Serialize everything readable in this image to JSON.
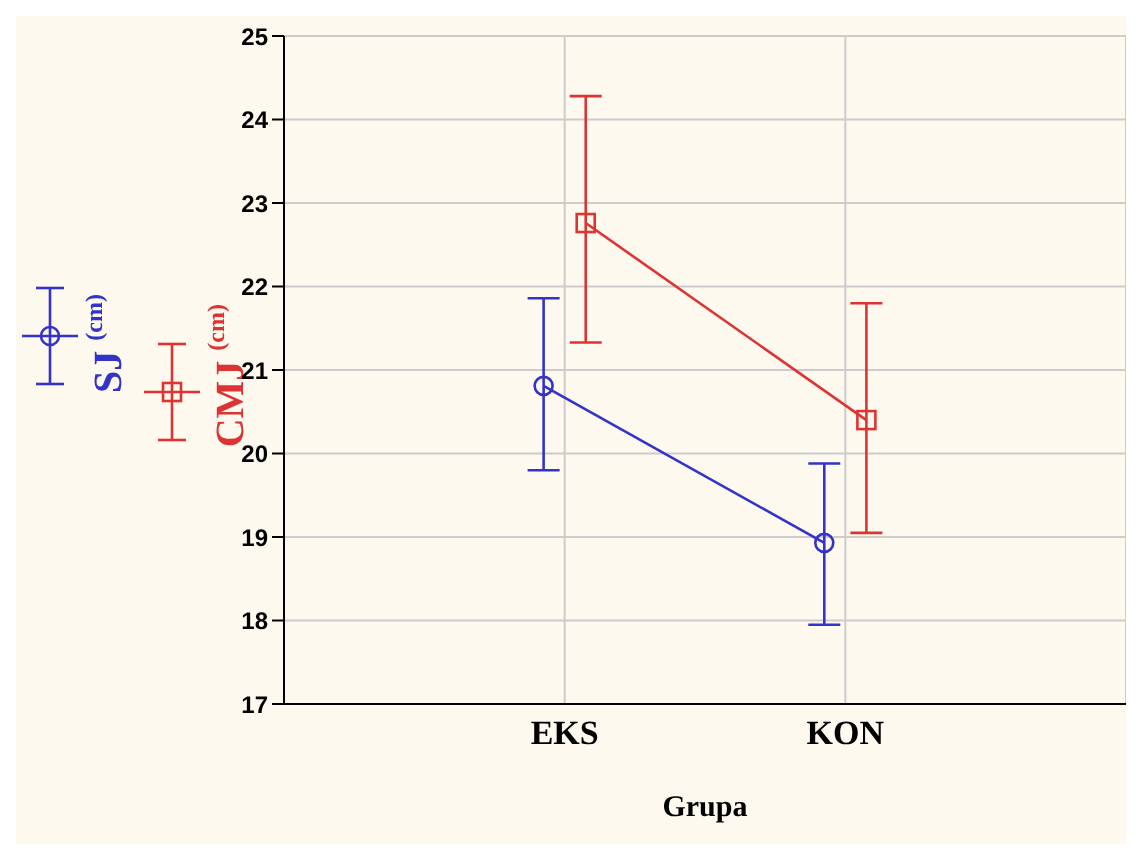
{
  "chart_data": {
    "type": "line",
    "xlabel": "Grupa",
    "categories": [
      "EKS",
      "KON"
    ],
    "series": [
      {
        "name": "SJ $^{(cm)}$",
        "color": "#3333cc",
        "marker": "circle",
        "values": [
          20.81,
          18.93
        ],
        "errors": [
          [
            19.8,
            21.86
          ],
          [
            17.95,
            19.88
          ]
        ]
      },
      {
        "name": "CMJ $^{(cm)}$",
        "color": "#dd3333",
        "marker": "square",
        "values": [
          22.76,
          20.4
        ],
        "errors": [
          [
            21.33,
            24.28
          ],
          [
            19.05,
            21.8
          ]
        ]
      }
    ],
    "ylim": [
      17,
      25
    ],
    "yticks": [
      17,
      18,
      19,
      20,
      21,
      22,
      23,
      24,
      25
    ],
    "grid": true,
    "legend": "left"
  }
}
